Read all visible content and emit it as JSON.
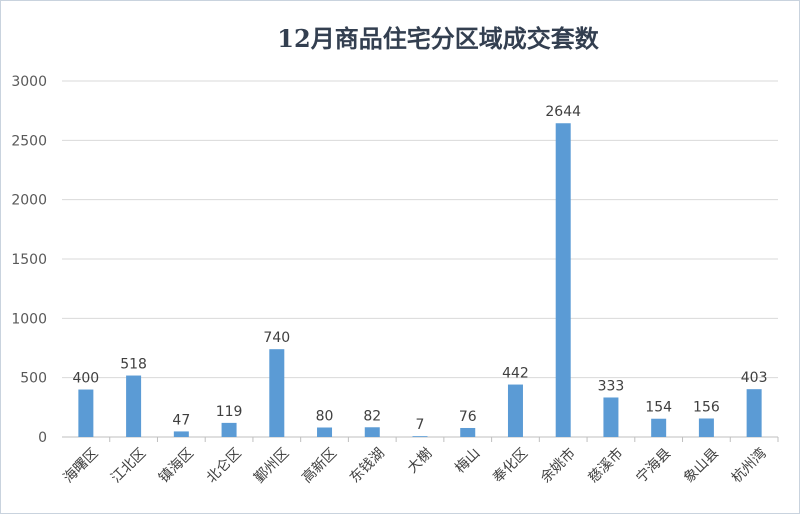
{
  "chart_data": {
    "type": "bar",
    "title": "12月商品住宅分区域成交套数",
    "xlabel": "",
    "ylabel": "",
    "ylim": [
      0,
      3000
    ],
    "yticks": [
      0,
      500,
      1000,
      1500,
      2000,
      2500,
      3000
    ],
    "grid": true,
    "legend": "none",
    "bar_color": "#5b9bd5",
    "categories": [
      "海曙区",
      "江北区",
      "镇海区",
      "北仑区",
      "鄞州区",
      "高新区",
      "东钱湖",
      "大榭",
      "梅山",
      "奉化区",
      "余姚市",
      "慈溪市",
      "宁海县",
      "象山县",
      "杭州湾"
    ],
    "values": [
      400,
      518,
      47,
      119,
      740,
      80,
      82,
      7,
      76,
      442,
      2644,
      333,
      154,
      156,
      403
    ]
  }
}
